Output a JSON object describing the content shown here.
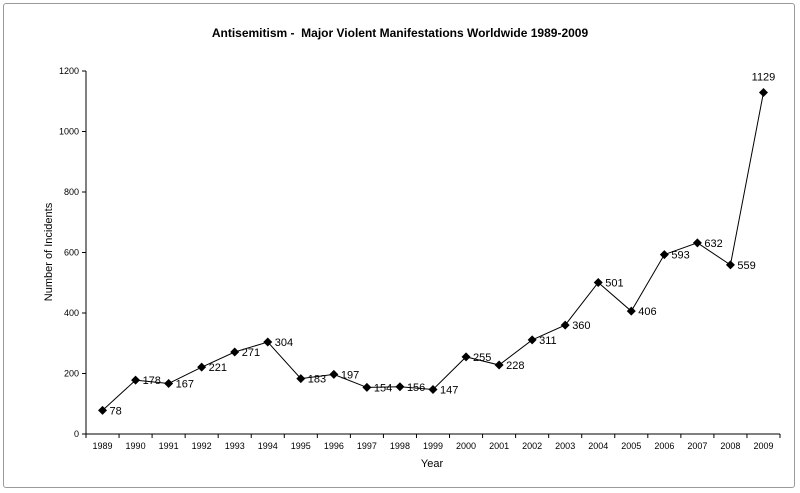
{
  "chart_data": {
    "type": "line",
    "title": "Antisemitism -  Major Violent Manifestations Worldwide 1989-2009",
    "xlabel": "Year",
    "ylabel": "Number of Incidents",
    "ylim": [
      0,
      1200
    ],
    "yticks": [
      0,
      200,
      400,
      600,
      800,
      1000,
      1200
    ],
    "grid": false,
    "legend": "none",
    "categories": [
      "1989",
      "1990",
      "1991",
      "1992",
      "1993",
      "1994",
      "1995",
      "1996",
      "1997",
      "1998",
      "1999",
      "2000",
      "2001",
      "2002",
      "2003",
      "2004",
      "2005",
      "2006",
      "2007",
      "2008",
      "2009"
    ],
    "series": [
      {
        "values": [
          78,
          178,
          167,
          221,
          271,
          304,
          183,
          197,
          154,
          156,
          147,
          255,
          228,
          311,
          360,
          501,
          406,
          593,
          632,
          559,
          1129
        ],
        "color": "#000000",
        "marker": "diamond"
      }
    ]
  }
}
